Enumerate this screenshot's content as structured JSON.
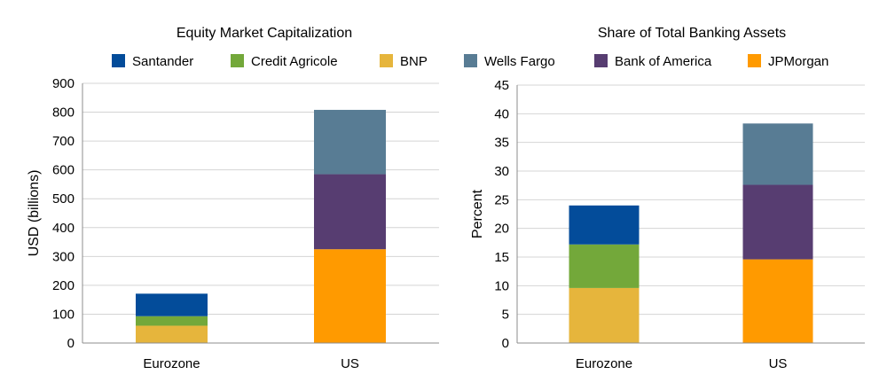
{
  "legend": [
    {
      "name": "Santander",
      "color": "#034C9A"
    },
    {
      "name": "Credit Agricole",
      "color": "#73A83A"
    },
    {
      "name": "BNP",
      "color": "#E6B53C"
    },
    {
      "name": "Wells Fargo",
      "color": "#587C94"
    },
    {
      "name": "Bank of America",
      "color": "#573D71"
    },
    {
      "name": "JPMorgan",
      "color": "#FF9A00"
    }
  ],
  "chart_data": [
    {
      "type": "bar",
      "stacked": true,
      "title": "Equity Market Capitalization",
      "ylabel": "USD (billions)",
      "xlabel": "",
      "categories": [
        "Eurozone",
        "US"
      ],
      "ylim": [
        0,
        900
      ],
      "yticks": [
        0,
        100,
        200,
        300,
        400,
        500,
        600,
        700,
        800,
        900
      ],
      "grid": true,
      "series": [
        {
          "name": "BNP",
          "color": "#E6B53C",
          "values": [
            60,
            0
          ]
        },
        {
          "name": "Credit Agricole",
          "color": "#73A83A",
          "values": [
            33,
            0
          ]
        },
        {
          "name": "Santander",
          "color": "#034C9A",
          "values": [
            78,
            0
          ]
        },
        {
          "name": "JPMorgan",
          "color": "#FF9A00",
          "values": [
            0,
            325
          ]
        },
        {
          "name": "Bank of America",
          "color": "#573D71",
          "values": [
            0,
            260
          ]
        },
        {
          "name": "Wells Fargo",
          "color": "#587C94",
          "values": [
            0,
            223
          ]
        }
      ]
    },
    {
      "type": "bar",
      "stacked": true,
      "title": "Share of Total Banking Assets",
      "ylabel": "Percent",
      "xlabel": "",
      "categories": [
        "Eurozone",
        "US"
      ],
      "ylim": [
        0,
        45
      ],
      "yticks": [
        0,
        5,
        10,
        15,
        20,
        25,
        30,
        35,
        40,
        45
      ],
      "grid": true,
      "series": [
        {
          "name": "BNP",
          "color": "#E6B53C",
          "values": [
            9.6,
            0
          ]
        },
        {
          "name": "Credit Agricole",
          "color": "#73A83A",
          "values": [
            7.6,
            0
          ]
        },
        {
          "name": "Santander",
          "color": "#034C9A",
          "values": [
            6.8,
            0
          ]
        },
        {
          "name": "JPMorgan",
          "color": "#FF9A00",
          "values": [
            0,
            14.6
          ]
        },
        {
          "name": "Bank of America",
          "color": "#573D71",
          "values": [
            0,
            13.0
          ]
        },
        {
          "name": "Wells Fargo",
          "color": "#587C94",
          "values": [
            0,
            10.7
          ]
        }
      ]
    }
  ]
}
